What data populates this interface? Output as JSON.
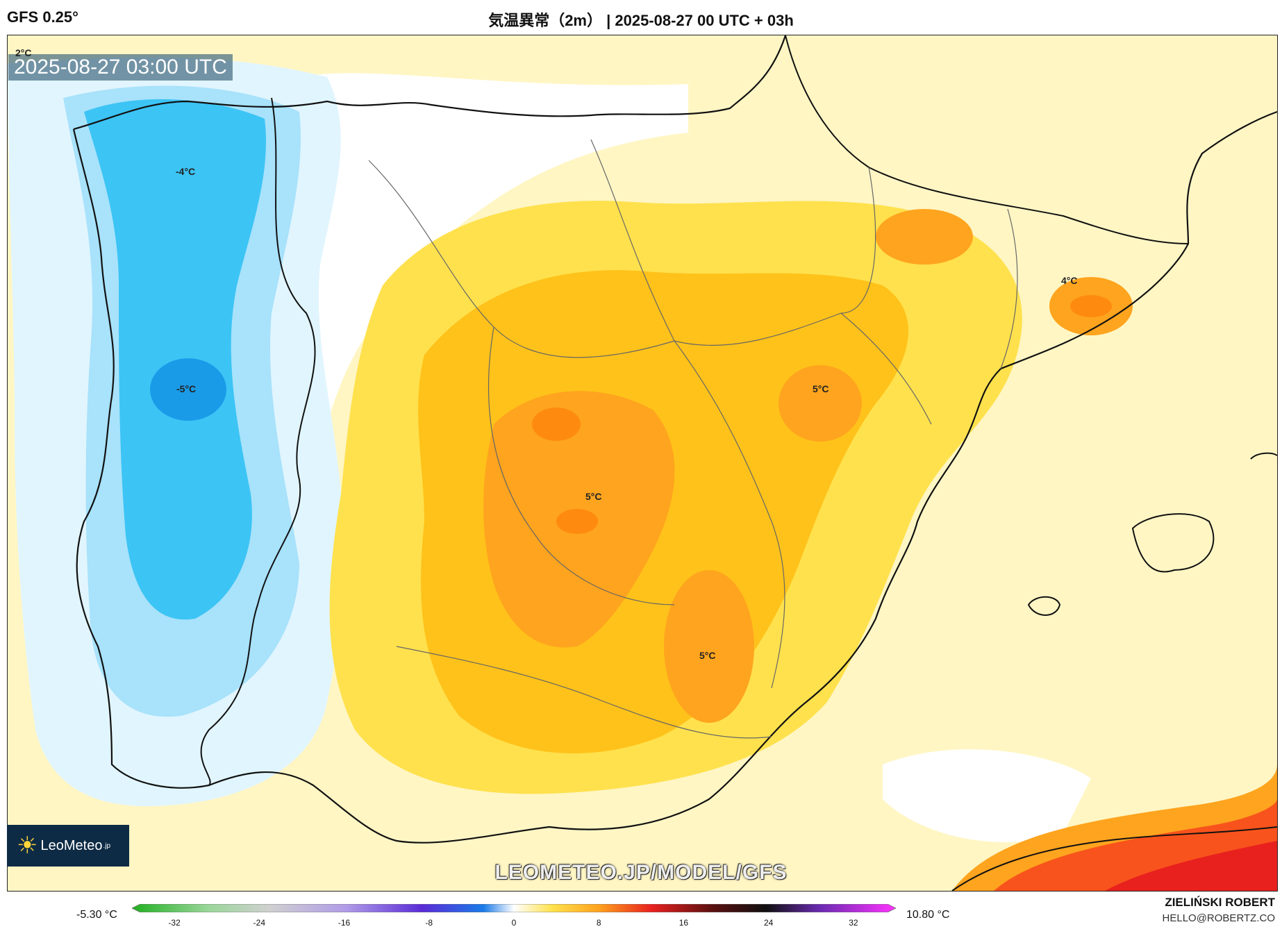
{
  "header": {
    "model": "GFS 0.25°",
    "title": "気温異常（2m） | 2025-08-27 00 UTC + 03h"
  },
  "map": {
    "valid_time": "2025-08-27 03:00 UTC",
    "labels": [
      "2°C",
      "-4°C",
      "-5°C",
      "5°C",
      "5°C",
      "4°C",
      "5°C"
    ],
    "colors": {
      "pale_yellow": "#fff6c4",
      "yellow": "#ffe14d",
      "gold": "#ffc21a",
      "orange": "#ffa41e",
      "dark_orange": "#ff8a10",
      "red_orange": "#f8531c",
      "red": "#e8211f",
      "light_blue": "#e1f5fe",
      "sky_blue": "#a8e2fb",
      "cyan": "#3cc4f5",
      "blue": "#1a9be8"
    }
  },
  "branding": {
    "logo_text": "LeoMeteo",
    "logo_suffix": ".jp",
    "logo_icon": "sun-icon",
    "watermark": "LEOMETEO.JP/MODEL/GFS"
  },
  "colorbar": {
    "min_label": "-5.30 °C",
    "max_label": "10.80 °C",
    "ticks": [
      "-32",
      "-24",
      "-16",
      "-8",
      "0",
      "8",
      "16",
      "24",
      "32"
    ],
    "range": [
      -36,
      36
    ]
  },
  "author": {
    "name": "ZIELIŃSKI ROBERT",
    "email": "HELLO@ROBERTZ.CO"
  }
}
